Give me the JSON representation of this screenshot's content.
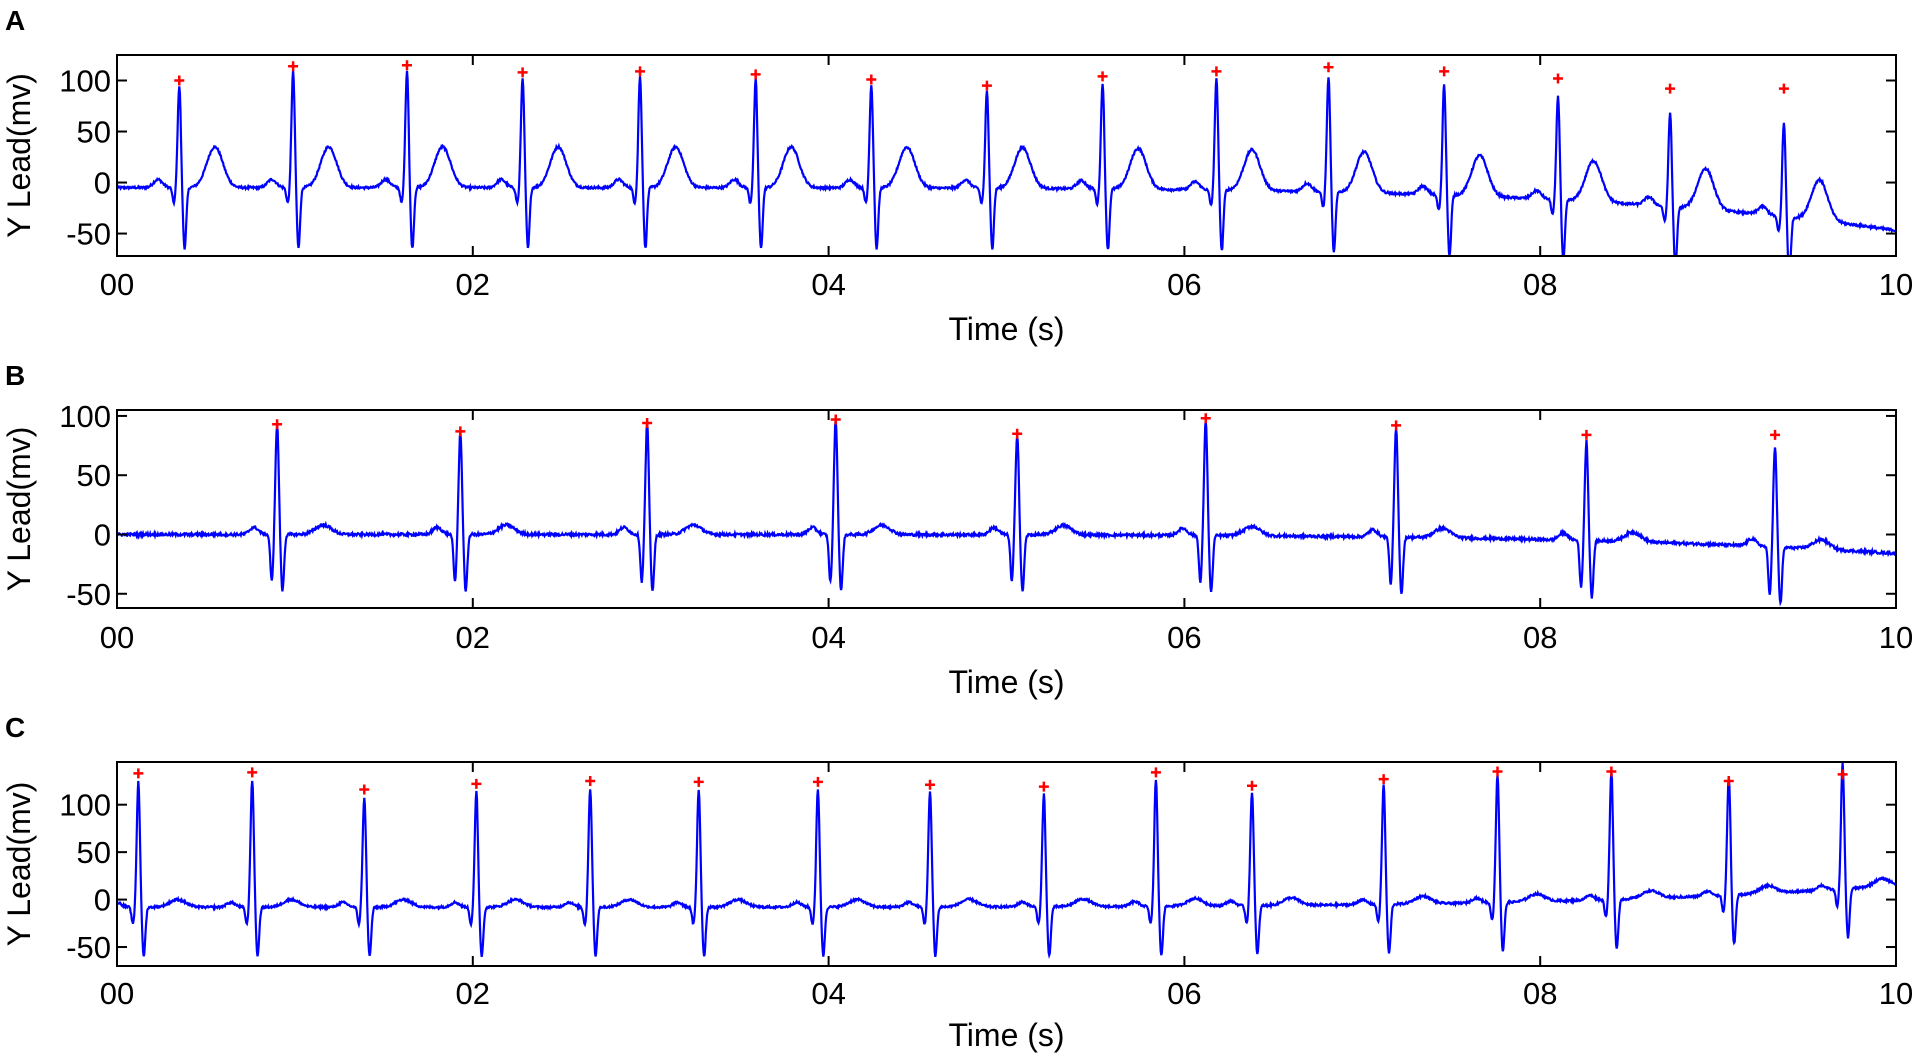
{
  "figure": {
    "background": "#ffffff",
    "signal_color": "#0000ff",
    "marker_color": "#ff0000",
    "axis_color": "#000000"
  },
  "chart_data": [
    {
      "panel_label": "A",
      "type": "line",
      "xlabel": "Time (s)",
      "ylabel": "Y Lead(mv)",
      "xlim": [
        0,
        10
      ],
      "ylim": [
        -72,
        125
      ],
      "xticks": [
        0,
        2,
        4,
        6,
        8,
        10
      ],
      "xtick_labels": [
        "00",
        "02",
        "04",
        "06",
        "08",
        "10"
      ],
      "yticks": [
        -50,
        0,
        50,
        100
      ],
      "ytick_labels": [
        "-50",
        "0",
        "50",
        "100"
      ],
      "grid": false,
      "start_level": -5,
      "end_level": -47,
      "r_peaks": {
        "x": [
          0.35,
          0.99,
          1.63,
          2.28,
          2.94,
          3.59,
          4.24,
          4.89,
          5.54,
          6.18,
          6.81,
          7.46,
          8.1,
          8.73,
          9.37
        ],
        "y": [
          100,
          114,
          115,
          108,
          109,
          106,
          101,
          95,
          104,
          109,
          113,
          109,
          102,
          92,
          92
        ]
      },
      "beat_shape": {
        "q": -15,
        "s": -60,
        "t": 40,
        "t_offset": 0.2,
        "p": 8,
        "p_offset": -0.12
      },
      "series": [
        {
          "name": "",
          "marker": "+",
          "x": [
            0.35,
            0.99,
            1.63,
            2.28,
            2.94,
            3.59,
            4.24,
            4.89,
            5.54,
            6.18,
            6.81,
            7.46,
            8.1,
            8.73,
            9.37
          ],
          "y": [
            100,
            114,
            115,
            108,
            109,
            106,
            101,
            95,
            104,
            109,
            113,
            109,
            102,
            92,
            92
          ]
        }
      ]
    },
    {
      "panel_label": "B",
      "type": "line",
      "xlabel": "Time (s)",
      "ylabel": "Y Lead(mv)",
      "xlim": [
        0,
        10
      ],
      "ylim": [
        -62,
        105
      ],
      "xticks": [
        0,
        2,
        4,
        6,
        8,
        10
      ],
      "xtick_labels": [
        "00",
        "02",
        "04",
        "06",
        "08",
        "10"
      ],
      "yticks": [
        -50,
        0,
        50,
        100
      ],
      "ytick_labels": [
        "-50",
        "0",
        "50",
        "100"
      ],
      "grid": false,
      "start_level": 0,
      "end_level": -16,
      "r_peaks": {
        "x": [
          0.9,
          1.93,
          2.98,
          4.04,
          5.06,
          6.12,
          7.19,
          8.26,
          9.32
        ],
        "y": [
          93,
          87,
          94,
          97,
          85,
          98,
          92,
          84,
          84
        ]
      },
      "beat_shape": {
        "q": -40,
        "s": -48,
        "t": 8,
        "t_offset": 0.26,
        "p": 6,
        "p_offset": -0.13
      },
      "series": [
        {
          "name": "",
          "marker": "+",
          "x": [
            0.9,
            1.93,
            2.98,
            4.04,
            5.06,
            6.12,
            7.19,
            8.26,
            9.32
          ],
          "y": [
            93,
            87,
            94,
            97,
            85,
            98,
            92,
            84,
            84
          ]
        }
      ]
    },
    {
      "panel_label": "C",
      "type": "line",
      "xlabel": "Time (s)",
      "ylabel": "Y Lead(mv)",
      "xlim": [
        0,
        10
      ],
      "ylim": [
        -70,
        145
      ],
      "xticks": [
        0,
        2,
        4,
        6,
        8,
        10
      ],
      "xtick_labels": [
        "00",
        "02",
        "04",
        "06",
        "08",
        "10"
      ],
      "yticks": [
        -50,
        0,
        50,
        100
      ],
      "ytick_labels": [
        "-50",
        "0",
        "50",
        "100"
      ],
      "grid": false,
      "start_level": -8,
      "end_level": 15,
      "r_peaks": {
        "x": [
          0.12,
          0.76,
          1.39,
          2.02,
          2.66,
          3.27,
          3.94,
          4.57,
          5.21,
          5.84,
          6.38,
          7.12,
          7.76,
          8.4,
          9.06,
          9.7
        ],
        "y": [
          133,
          134,
          116,
          122,
          125,
          124,
          124,
          121,
          119,
          134,
          120,
          127,
          135,
          135,
          125,
          132
        ]
      },
      "beat_shape": {
        "q": -18,
        "s": -52,
        "t": 8,
        "t_offset": 0.22,
        "p": 5,
        "p_offset": -0.12
      },
      "series": [
        {
          "name": "",
          "marker": "+",
          "x": [
            0.12,
            0.76,
            1.39,
            2.02,
            2.66,
            3.27,
            3.94,
            4.57,
            5.21,
            5.84,
            6.38,
            7.12,
            7.76,
            8.4,
            9.06,
            9.7
          ],
          "y": [
            133,
            134,
            116,
            122,
            125,
            124,
            124,
            121,
            119,
            134,
            120,
            127,
            135,
            135,
            125,
            132
          ]
        }
      ]
    }
  ]
}
